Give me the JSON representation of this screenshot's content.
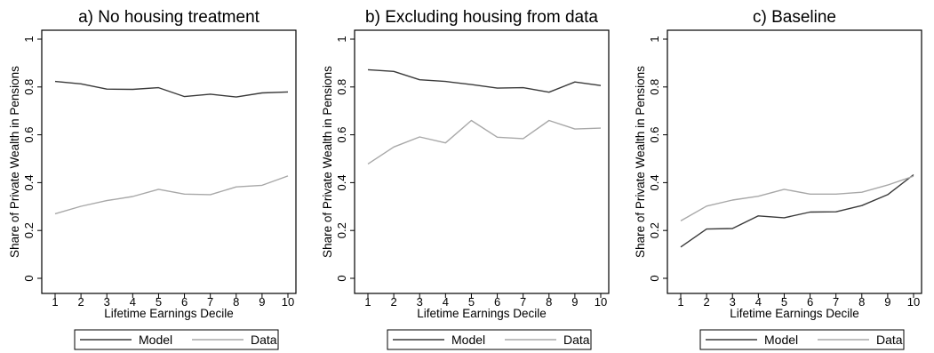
{
  "chart_data": [
    {
      "type": "line",
      "title": "a) No housing treatment",
      "xlabel": "Lifetime Earnings Decile",
      "ylabel": "Share of Private Wealth in Pensions",
      "x": [
        1,
        2,
        3,
        4,
        5,
        6,
        7,
        8,
        9,
        10
      ],
      "xticks": [
        "1",
        "2",
        "3",
        "4",
        "5",
        "6",
        "7",
        "8",
        "9",
        "10"
      ],
      "yticks": [
        "0",
        "0.2",
        "0.4",
        "0.6",
        "0.8",
        "1"
      ],
      "ylim": [
        0,
        1
      ],
      "grid": false,
      "legend": "bottom",
      "series": [
        {
          "name": "Model",
          "color": "#3a3a3a",
          "values": [
            0.823,
            0.813,
            0.791,
            0.79,
            0.797,
            0.76,
            0.77,
            0.758,
            0.775,
            0.779
          ]
        },
        {
          "name": "Data",
          "color": "#a8a8a8",
          "values": [
            0.27,
            0.301,
            0.325,
            0.342,
            0.372,
            0.352,
            0.35,
            0.382,
            0.389,
            0.428
          ]
        }
      ]
    },
    {
      "type": "line",
      "title": "b) Excluding housing from data",
      "xlabel": "Lifetime Earnings Decile",
      "ylabel": "Share of Private Wealth in Pensions",
      "x": [
        1,
        2,
        3,
        4,
        5,
        6,
        7,
        8,
        9,
        10
      ],
      "xticks": [
        "1",
        "2",
        "3",
        "4",
        "5",
        "6",
        "7",
        "8",
        "9",
        "10"
      ],
      "yticks": [
        "0",
        "0.2",
        "0.4",
        "0.6",
        "0.8",
        "1"
      ],
      "ylim": [
        0,
        1
      ],
      "grid": false,
      "legend": "bottom",
      "series": [
        {
          "name": "Model",
          "color": "#3a3a3a",
          "values": [
            0.872,
            0.865,
            0.83,
            0.823,
            0.81,
            0.795,
            0.797,
            0.778,
            0.821,
            0.806
          ]
        },
        {
          "name": "Data",
          "color": "#a8a8a8",
          "values": [
            0.478,
            0.549,
            0.591,
            0.566,
            0.66,
            0.59,
            0.584,
            0.66,
            0.624,
            0.628
          ]
        }
      ]
    },
    {
      "type": "line",
      "title": "c) Baseline",
      "xlabel": "Lifetime Earnings Decile",
      "ylabel": "Share of Private Wealth in Pensions",
      "x": [
        1,
        2,
        3,
        4,
        5,
        6,
        7,
        8,
        9,
        10
      ],
      "xticks": [
        "1",
        "2",
        "3",
        "4",
        "5",
        "6",
        "7",
        "8",
        "9",
        "10"
      ],
      "yticks": [
        "0",
        "0.2",
        "0.4",
        "0.6",
        "0.8",
        "1"
      ],
      "ylim": [
        0,
        1
      ],
      "grid": false,
      "legend": "bottom",
      "series": [
        {
          "name": "Model",
          "color": "#3a3a3a",
          "values": [
            0.131,
            0.206,
            0.208,
            0.261,
            0.253,
            0.277,
            0.278,
            0.304,
            0.35,
            0.433
          ]
        },
        {
          "name": "Data",
          "color": "#a8a8a8",
          "values": [
            0.24,
            0.302,
            0.327,
            0.343,
            0.372,
            0.352,
            0.352,
            0.36,
            0.39,
            0.427
          ]
        }
      ]
    }
  ]
}
